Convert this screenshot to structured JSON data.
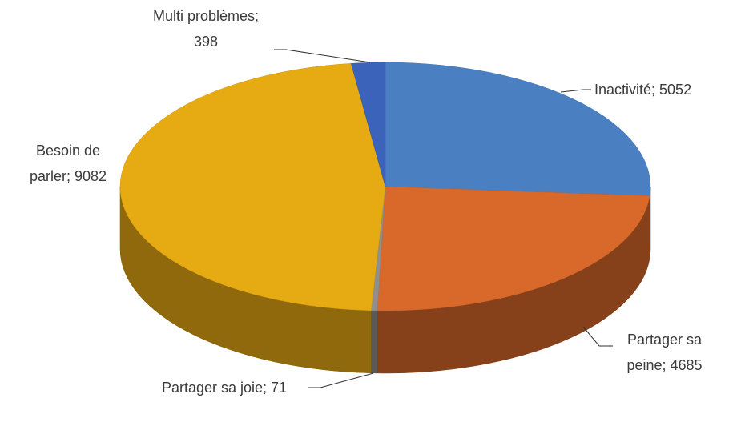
{
  "chart_data": {
    "type": "pie3d",
    "values": [
      5052,
      4685,
      71,
      9082,
      398
    ],
    "value_labels": [
      "Inactivité; 5052",
      "Partager sa peine; 4685",
      "Partager sa joie; 71",
      "Besoin de parler; 9082",
      "Multi problèmes; 398"
    ],
    "colors": [
      "#4a80c2",
      "#d9692a",
      "#8f8f8f",
      "#e6aa12",
      "#3a63b9"
    ]
  }
}
